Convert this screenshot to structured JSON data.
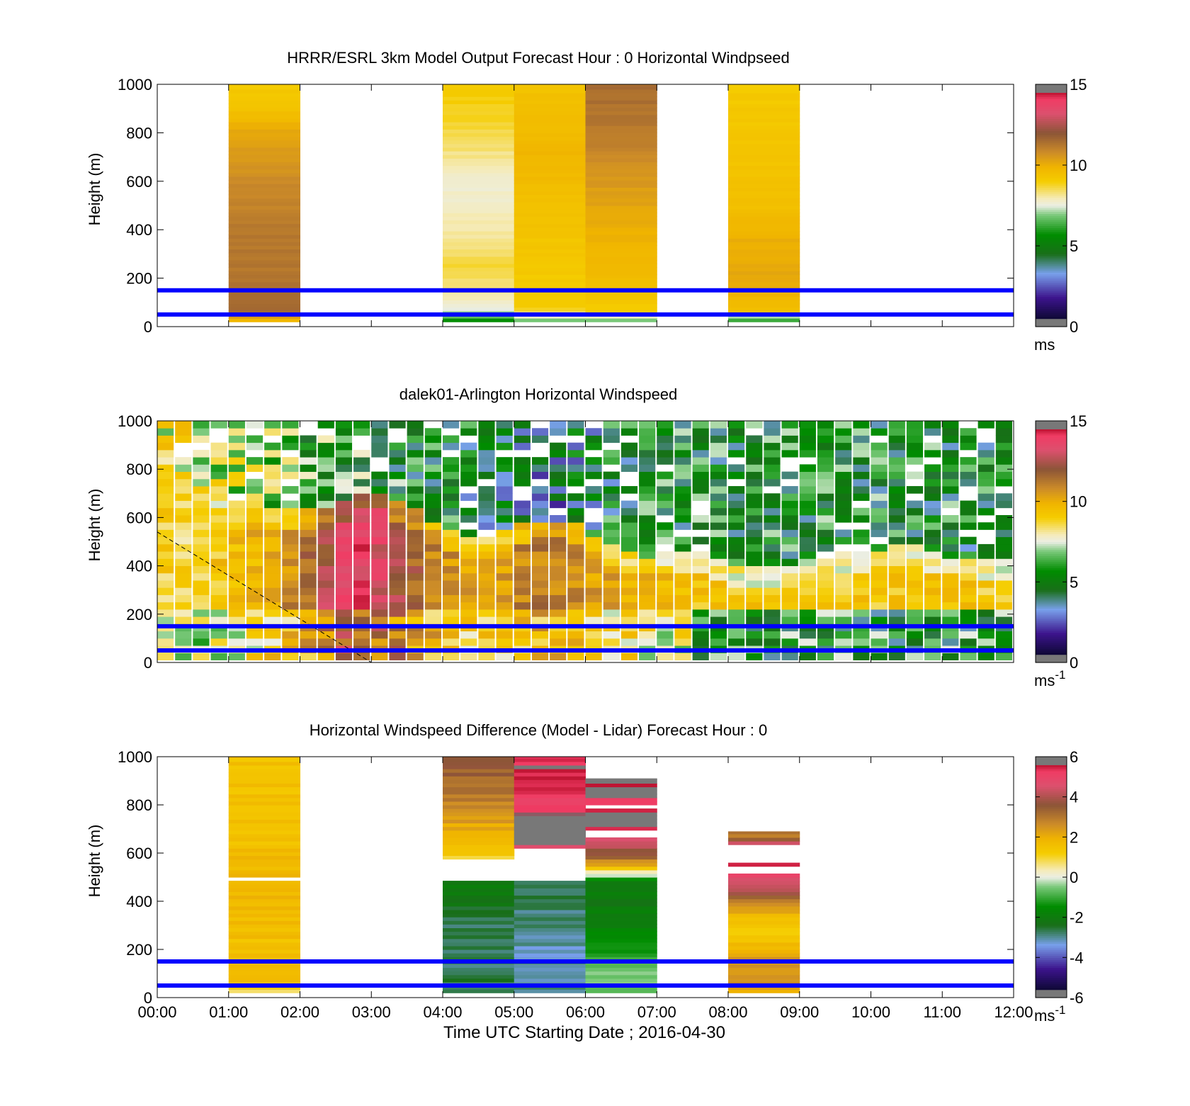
{
  "figure": {
    "time_ticks": [
      "00:00",
      "01:00",
      "02:00",
      "03:00",
      "04:00",
      "05:00",
      "06:00",
      "07:00",
      "08:00",
      "09:00",
      "10:00",
      "11:00",
      "12:00"
    ],
    "xlabel": "Time UTC  Starting Date ; 2016-04-30",
    "line_color": "#0000ff"
  },
  "chart_data": [
    {
      "type": "heatmap",
      "title": "HRRR/ESRL 3km Model Output   Forecast Hour : 0 Horizontal Windpseed",
      "ylabel": "Height (m)",
      "xlim": [
        0,
        12
      ],
      "ylim": [
        0,
        1000
      ],
      "y_ticks": [
        "0",
        "200",
        "400",
        "600",
        "800",
        "1000"
      ],
      "colorbar": {
        "min": 0,
        "max": 15,
        "ticks": [
          "0",
          "5",
          "10",
          "15"
        ],
        "unit_label": "ms",
        "unit_sup": ""
      },
      "reference_lines_m": [
        50,
        150
      ],
      "columns": [
        {
          "t0": 1,
          "t1": 2,
          "from_m": 20,
          "to_m": 1000,
          "profile": [
            [
              20,
              9.5
            ],
            [
              60,
              11.5
            ],
            [
              200,
              11.3
            ],
            [
              400,
              11.2
            ],
            [
              600,
              10.8
            ],
            [
              800,
              10.2
            ],
            [
              900,
              9.4
            ],
            [
              1000,
              9.1
            ]
          ]
        },
        {
          "t0": 4,
          "t1": 5,
          "from_m": 20,
          "to_m": 1000,
          "profile": [
            [
              20,
              5.0
            ],
            [
              35,
              6.5
            ],
            [
              60,
              7.2
            ],
            [
              120,
              8.0
            ],
            [
              250,
              8.7
            ],
            [
              400,
              8.0
            ],
            [
              600,
              7.7
            ],
            [
              750,
              8.4
            ],
            [
              850,
              8.8
            ],
            [
              1000,
              9.1
            ]
          ]
        },
        {
          "t0": 5,
          "t1": 6,
          "from_m": 20,
          "to_m": 1000,
          "profile": [
            [
              20,
              6.5
            ],
            [
              60,
              8.5
            ],
            [
              80,
              9.1
            ],
            [
              300,
              9.2
            ],
            [
              500,
              9.5
            ],
            [
              700,
              9.8
            ],
            [
              900,
              9.5
            ],
            [
              1000,
              9.4
            ]
          ]
        },
        {
          "t0": 6,
          "t1": 7,
          "from_m": 20,
          "to_m": 1000,
          "profile": [
            [
              20,
              6.5
            ],
            [
              60,
              9.0
            ],
            [
              200,
              9.6
            ],
            [
              400,
              10.0
            ],
            [
              600,
              10.5
            ],
            [
              800,
              11.2
            ],
            [
              1000,
              11.5
            ]
          ]
        },
        {
          "t0": 8,
          "t1": 9,
          "from_m": 20,
          "to_m": 1000,
          "profile": [
            [
              20,
              6.0
            ],
            [
              40,
              6.8
            ],
            [
              60,
              9.5
            ],
            [
              200,
              10.2
            ],
            [
              350,
              10.0
            ],
            [
              500,
              9.5
            ],
            [
              700,
              9.3
            ],
            [
              1000,
              9.1
            ]
          ]
        }
      ]
    },
    {
      "type": "heatmap",
      "title": "dalek01-Arlington  Horizontal Windspeed",
      "ylabel": "Height (m)",
      "xlim": [
        0,
        12
      ],
      "ylim": [
        0,
        1000
      ],
      "y_ticks": [
        "0",
        "200",
        "400",
        "600",
        "800",
        "1000"
      ],
      "colorbar": {
        "min": 0,
        "max": 15,
        "ticks": [
          "0",
          "5",
          "10",
          "15"
        ],
        "unit_label": "ms",
        "unit_sup": "-1"
      },
      "reference_lines_m": [
        50,
        150
      ],
      "dashed_line": [
        [
          0,
          540
        ],
        [
          3,
          0
        ]
      ],
      "scan_columns": 48,
      "bin_height_m": 30,
      "time_samples": [
        {
          "t": 0.0,
          "bl": 9.0,
          "top": 7.5,
          "h": 900
        },
        {
          "t": 0.5,
          "bl": 8.5,
          "top": 8.0,
          "h": 850
        },
        {
          "t": 1.0,
          "bl": 9.5,
          "top": 7.2,
          "h": 680
        },
        {
          "t": 1.5,
          "bl": 10.0,
          "top": 6.5,
          "h": 640
        },
        {
          "t": 2.0,
          "bl": 11.0,
          "top": 6.0,
          "h": 640
        },
        {
          "t": 2.5,
          "bl": 13.0,
          "top": 5.8,
          "h": 650
        },
        {
          "t": 2.75,
          "bl": 13.8,
          "top": 5.8,
          "h": 700
        },
        {
          "t": 3.0,
          "bl": 13.5,
          "top": 5.5,
          "h": 730
        },
        {
          "t": 3.5,
          "bl": 12.0,
          "top": 5.2,
          "h": 650
        },
        {
          "t": 4.0,
          "bl": 10.8,
          "top": 5.0,
          "h": 560
        },
        {
          "t": 4.5,
          "bl": 10.0,
          "top": 4.5,
          "h": 520
        },
        {
          "t": 5.0,
          "bl": 10.8,
          "top": 4.0,
          "h": 560
        },
        {
          "t": 5.5,
          "bl": 11.2,
          "top": 3.5,
          "h": 600
        },
        {
          "t": 6.0,
          "bl": 10.6,
          "top": 4.2,
          "h": 560
        },
        {
          "t": 6.5,
          "bl": 10.0,
          "top": 5.0,
          "h": 450
        },
        {
          "t": 7.0,
          "bl": 9.6,
          "top": 5.0,
          "h": 440
        },
        {
          "t": 7.5,
          "bl": 9.3,
          "top": 5.2,
          "h": 470
        },
        {
          "t": 8.0,
          "bl": 9.2,
          "top": 5.0,
          "h": 400
        },
        {
          "t": 8.5,
          "bl": 9.1,
          "top": 5.0,
          "h": 390
        },
        {
          "t": 9.0,
          "bl": 9.0,
          "top": 5.2,
          "h": 420
        },
        {
          "t": 9.5,
          "bl": 9.1,
          "top": 5.1,
          "h": 450
        },
        {
          "t": 10.0,
          "bl": 9.2,
          "top": 5.1,
          "h": 470
        },
        {
          "t": 10.5,
          "bl": 9.4,
          "top": 5.2,
          "h": 490
        },
        {
          "t": 11.0,
          "bl": 9.3,
          "top": 5.0,
          "h": 450
        },
        {
          "t": 11.5,
          "bl": 9.2,
          "top": 5.0,
          "h": 420
        },
        {
          "t": 11.83,
          "bl": 9.0,
          "top": 5.0,
          "h": 420
        }
      ],
      "near_surface_m": 210,
      "near_surface_green_after_h": 7.5
    },
    {
      "type": "heatmap",
      "title": "Horizontal Windspeed Difference (Model - Lidar) Forecast Hour : 0",
      "ylabel": "Height (m)",
      "xlabel": "Time UTC  Starting Date ; 2016-04-30",
      "xlim": [
        0,
        12
      ],
      "ylim": [
        0,
        1000
      ],
      "y_ticks": [
        "0",
        "200",
        "400",
        "600",
        "800",
        "1000"
      ],
      "colorbar": {
        "min": -6,
        "max": 6,
        "ticks": [
          "-6",
          "-4",
          "-2",
          "0",
          "2",
          "4",
          "6"
        ],
        "unit_label": "ms",
        "unit_sup": "-1"
      },
      "reference_lines_m": [
        50,
        150
      ],
      "columns": [
        {
          "t0": 1,
          "t1": 2,
          "from_m": 20,
          "to_m": 1000,
          "gaps": [
            [
              480,
              505
            ]
          ],
          "profile": [
            [
              20,
              0.6
            ],
            [
              40,
              1.5
            ],
            [
              200,
              1.6
            ],
            [
              500,
              1.8
            ],
            [
              700,
              1.5
            ],
            [
              900,
              1.6
            ],
            [
              1000,
              1.5
            ]
          ]
        },
        {
          "t0": 4,
          "t1": 5,
          "from_m": 20,
          "to_m": 1000,
          "gaps": [
            [
              480,
              570
            ]
          ],
          "profile": [
            [
              20,
              -2.6
            ],
            [
              150,
              -2.8
            ],
            [
              300,
              -2.6
            ],
            [
              480,
              -2.0
            ],
            [
              570,
              0.5
            ],
            [
              600,
              1.5
            ],
            [
              700,
              2.0
            ],
            [
              800,
              2.8
            ],
            [
              900,
              3.3
            ],
            [
              1000,
              3.6
            ]
          ]
        },
        {
          "t0": 5,
          "t1": 6,
          "from_m": 20,
          "to_m": 1000,
          "gaps": [
            [
              480,
              620
            ]
          ],
          "profile": [
            [
              20,
              -3.0
            ],
            [
              200,
              -3.1
            ],
            [
              480,
              -2.6
            ],
            [
              620,
              4.5
            ],
            [
              650,
              6.2
            ],
            [
              700,
              6.2
            ],
            [
              800,
              5.2
            ],
            [
              900,
              5.4
            ],
            [
              1000,
              5.6
            ]
          ]
        },
        {
          "t0": 6,
          "t1": 7,
          "from_m": 20,
          "to_m": 910,
          "gaps": [
            [
              670,
              690
            ],
            [
              790,
              805
            ]
          ],
          "profile": [
            [
              20,
              -0.6
            ],
            [
              100,
              -0.5
            ],
            [
              200,
              -1.4
            ],
            [
              400,
              -2.1
            ],
            [
              480,
              -1.8
            ],
            [
              530,
              0.8
            ],
            [
              560,
              2.6
            ],
            [
              640,
              4.5
            ],
            [
              690,
              5.2
            ],
            [
              720,
              6.2
            ],
            [
              800,
              5.4
            ],
            [
              910,
              6.0
            ]
          ]
        },
        {
          "t0": 8,
          "t1": 9,
          "from_m": 20,
          "to_m": 690,
          "gaps": [
            [
              510,
              540
            ],
            [
              555,
              630
            ]
          ],
          "profile": [
            [
              20,
              1.8
            ],
            [
              60,
              2.6
            ],
            [
              150,
              2.4
            ],
            [
              260,
              1.3
            ],
            [
              350,
              1.8
            ],
            [
              420,
              3.5
            ],
            [
              510,
              5.0
            ],
            [
              540,
              5.6
            ],
            [
              630,
              5.6
            ],
            [
              660,
              3.0
            ],
            [
              690,
              3.0
            ]
          ]
        }
      ]
    }
  ]
}
